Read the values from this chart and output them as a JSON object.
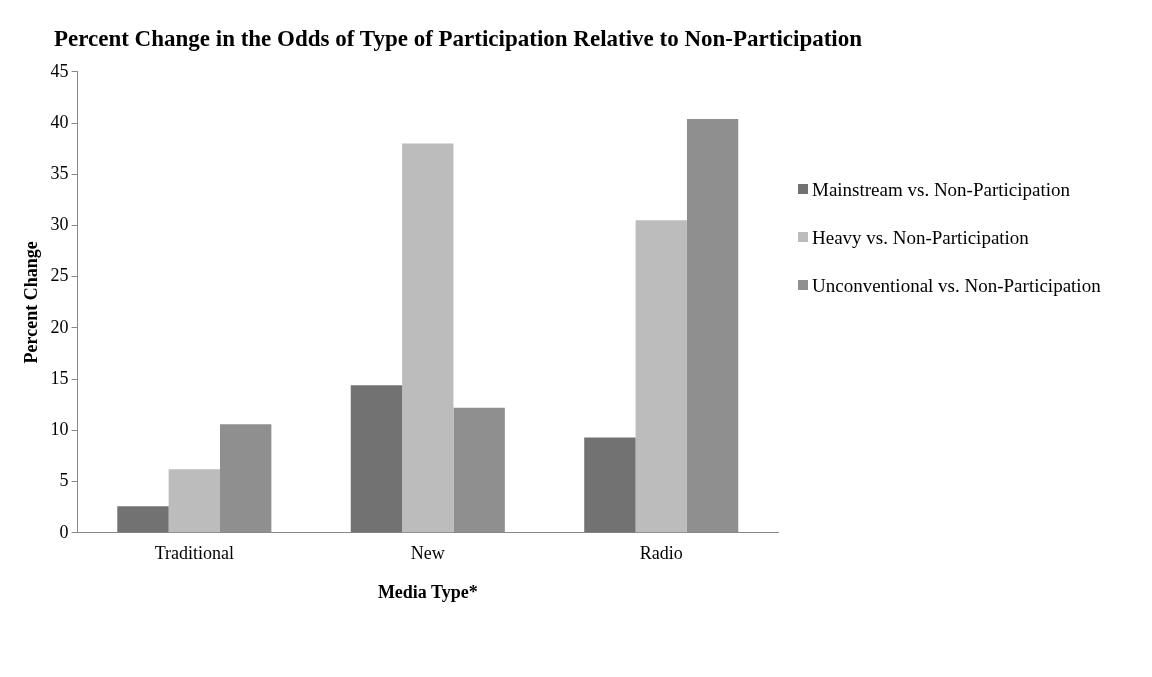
{
  "chart_data": {
    "type": "bar",
    "title": "Percent Change in the Odds of Type of Participation Relative to Non-Participation",
    "xlabel": "Media Type*",
    "ylabel": "Percent Change",
    "categories": [
      "Traditional",
      "New",
      "Radio"
    ],
    "series": [
      {
        "name": "Mainstream vs. Non-Participation",
        "color": "#727272",
        "values": [
          2.6,
          14.4,
          9.3
        ]
      },
      {
        "name": "Heavy vs. Non-Participation",
        "color": "#bcbcbc",
        "values": [
          6.2,
          38.0,
          30.5
        ]
      },
      {
        "name": "Unconventional vs. Non-Participation",
        "color": "#8f8f8f",
        "values": [
          10.6,
          12.2,
          40.4
        ]
      }
    ],
    "ylim": [
      0,
      45
    ],
    "yticks": [
      0,
      5,
      10,
      15,
      20,
      25,
      30,
      35,
      40,
      45
    ],
    "grid": false,
    "legend": "right"
  }
}
